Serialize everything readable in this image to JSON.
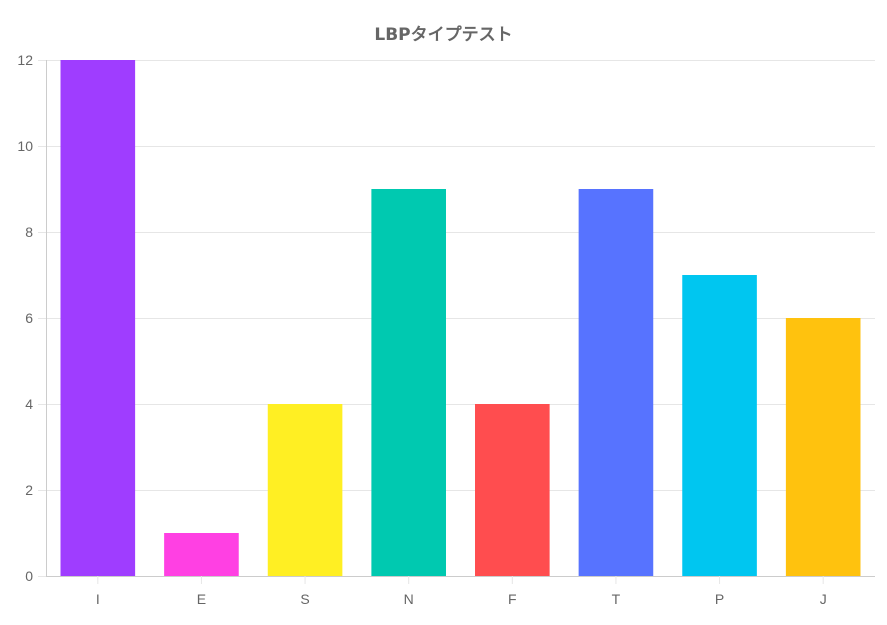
{
  "chart_data": {
    "type": "bar",
    "title": "LBPタイプテスト",
    "xlabel": "",
    "ylabel": "",
    "categories": [
      "I",
      "E",
      "S",
      "N",
      "F",
      "T",
      "P",
      "J"
    ],
    "values": [
      12,
      1,
      4,
      9,
      4,
      9,
      7,
      6
    ],
    "colors": [
      "#9f3dff",
      "#ff40e3",
      "#ffef23",
      "#00c9b0",
      "#ff4d4f",
      "#5773ff",
      "#00c6f0",
      "#ffc20e"
    ],
    "ylim": [
      0,
      12
    ],
    "yticks": [
      0,
      2,
      4,
      6,
      8,
      10,
      12
    ],
    "grid": true,
    "legend": "none"
  }
}
